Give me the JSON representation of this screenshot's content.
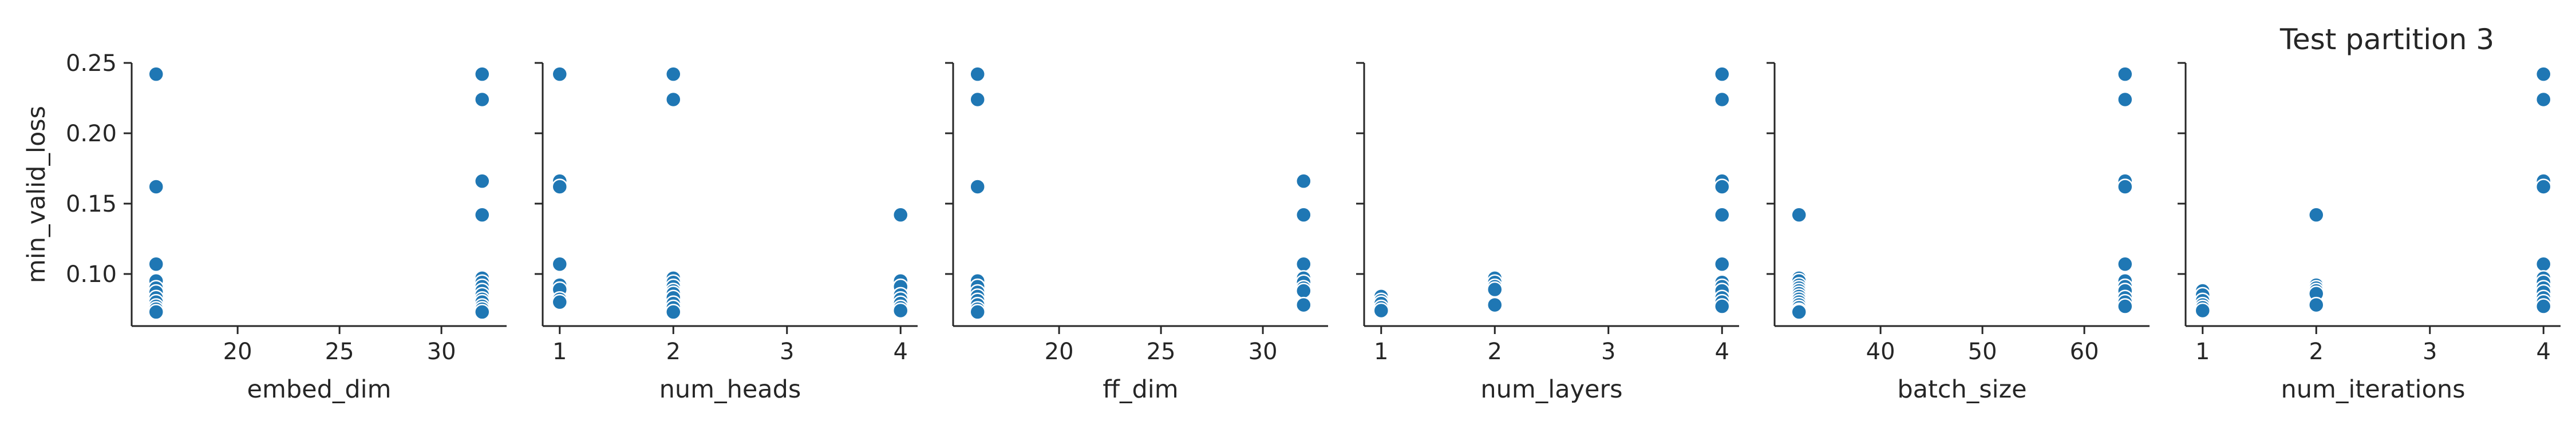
{
  "figure": {
    "title": "Test partition 3",
    "marker_color": "#1f77b4",
    "axis_color": "#262626"
  },
  "chart_data": [
    {
      "type": "scatter",
      "xlabel": "embed_dim",
      "ylabel": "min_valid_loss",
      "xlim": [
        14.8,
        33.2
      ],
      "ylim": [
        0.063,
        0.25
      ],
      "xticks": [
        20,
        25,
        30
      ],
      "yticks": [
        0.1,
        0.15,
        0.2,
        0.25
      ],
      "ytick_labels": [
        "0.10",
        "0.15",
        "0.20",
        "0.25"
      ],
      "series": [
        {
          "name": "min_valid_loss",
          "points": [
            [
              16,
              0.242
            ],
            [
              16,
              0.162
            ],
            [
              16,
              0.107
            ],
            [
              16,
              0.095
            ],
            [
              16,
              0.09
            ],
            [
              16,
              0.087
            ],
            [
              16,
              0.083
            ],
            [
              16,
              0.08
            ],
            [
              16,
              0.077
            ],
            [
              16,
              0.075
            ],
            [
              16,
              0.073
            ],
            [
              32,
              0.242
            ],
            [
              32,
              0.224
            ],
            [
              32,
              0.166
            ],
            [
              32,
              0.142
            ],
            [
              32,
              0.097
            ],
            [
              32,
              0.094
            ],
            [
              32,
              0.091
            ],
            [
              32,
              0.088
            ],
            [
              32,
              0.085
            ],
            [
              32,
              0.082
            ],
            [
              32,
              0.08
            ],
            [
              32,
              0.077
            ],
            [
              32,
              0.075
            ],
            [
              32,
              0.073
            ]
          ]
        }
      ]
    },
    {
      "type": "scatter",
      "xlabel": "num_heads",
      "ylabel": "",
      "xlim": [
        0.85,
        4.15
      ],
      "ylim": [
        0.063,
        0.25
      ],
      "xticks": [
        1,
        2,
        3,
        4
      ],
      "yticks": [
        0.1,
        0.15,
        0.2,
        0.25
      ],
      "ytick_labels": [],
      "series": [
        {
          "name": "min_valid_loss",
          "points": [
            [
              1,
              0.242
            ],
            [
              1,
              0.166
            ],
            [
              1,
              0.162
            ],
            [
              1,
              0.107
            ],
            [
              1,
              0.092
            ],
            [
              1,
              0.089
            ],
            [
              1,
              0.082
            ],
            [
              1,
              0.08
            ],
            [
              2,
              0.242
            ],
            [
              2,
              0.224
            ],
            [
              2,
              0.097
            ],
            [
              2,
              0.094
            ],
            [
              2,
              0.091
            ],
            [
              2,
              0.088
            ],
            [
              2,
              0.086
            ],
            [
              2,
              0.083
            ],
            [
              2,
              0.079
            ],
            [
              2,
              0.076
            ],
            [
              2,
              0.073
            ],
            [
              4,
              0.142
            ],
            [
              4,
              0.095
            ],
            [
              4,
              0.091
            ],
            [
              4,
              0.085
            ],
            [
              4,
              0.082
            ],
            [
              4,
              0.079
            ],
            [
              4,
              0.076
            ],
            [
              4,
              0.074
            ]
          ]
        }
      ]
    },
    {
      "type": "scatter",
      "xlabel": "ff_dim",
      "ylabel": "",
      "xlim": [
        14.8,
        33.2
      ],
      "ylim": [
        0.063,
        0.25
      ],
      "xticks": [
        20,
        25,
        30
      ],
      "yticks": [
        0.1,
        0.15,
        0.2,
        0.25
      ],
      "ytick_labels": [],
      "series": [
        {
          "name": "min_valid_loss",
          "points": [
            [
              16,
              0.242
            ],
            [
              16,
              0.224
            ],
            [
              16,
              0.162
            ],
            [
              16,
              0.095
            ],
            [
              16,
              0.091
            ],
            [
              16,
              0.087
            ],
            [
              16,
              0.084
            ],
            [
              16,
              0.081
            ],
            [
              16,
              0.078
            ],
            [
              16,
              0.075
            ],
            [
              16,
              0.073
            ],
            [
              32,
              0.166
            ],
            [
              32,
              0.142
            ],
            [
              32,
              0.107
            ],
            [
              32,
              0.097
            ],
            [
              32,
              0.094
            ],
            [
              32,
              0.09
            ],
            [
              32,
              0.088
            ],
            [
              32,
              0.078
            ]
          ]
        }
      ]
    },
    {
      "type": "scatter",
      "xlabel": "num_layers",
      "ylabel": "",
      "xlim": [
        0.85,
        4.15
      ],
      "ylim": [
        0.063,
        0.25
      ],
      "xticks": [
        1,
        2,
        3,
        4
      ],
      "yticks": [
        0.1,
        0.15,
        0.2,
        0.25
      ],
      "ytick_labels": [],
      "series": [
        {
          "name": "min_valid_loss",
          "points": [
            [
              1,
              0.084
            ],
            [
              1,
              0.081
            ],
            [
              1,
              0.079
            ],
            [
              1,
              0.076
            ],
            [
              1,
              0.074
            ],
            [
              2,
              0.097
            ],
            [
              2,
              0.094
            ],
            [
              2,
              0.091
            ],
            [
              2,
              0.089
            ],
            [
              2,
              0.078
            ],
            [
              4,
              0.242
            ],
            [
              4,
              0.224
            ],
            [
              4,
              0.166
            ],
            [
              4,
              0.162
            ],
            [
              4,
              0.142
            ],
            [
              4,
              0.107
            ],
            [
              4,
              0.094
            ],
            [
              4,
              0.091
            ],
            [
              4,
              0.088
            ],
            [
              4,
              0.083
            ],
            [
              4,
              0.08
            ],
            [
              4,
              0.077
            ]
          ]
        }
      ]
    },
    {
      "type": "scatter",
      "xlabel": "batch_size",
      "ylabel": "",
      "xlim": [
        29.6,
        66.4
      ],
      "ylim": [
        0.063,
        0.25
      ],
      "xticks": [
        40,
        50,
        60
      ],
      "yticks": [
        0.1,
        0.15,
        0.2,
        0.25
      ],
      "ytick_labels": [],
      "series": [
        {
          "name": "min_valid_loss",
          "points": [
            [
              32,
              0.142
            ],
            [
              32,
              0.097
            ],
            [
              32,
              0.095
            ],
            [
              32,
              0.092
            ],
            [
              32,
              0.09
            ],
            [
              32,
              0.088
            ],
            [
              32,
              0.086
            ],
            [
              32,
              0.084
            ],
            [
              32,
              0.082
            ],
            [
              32,
              0.08
            ],
            [
              32,
              0.078
            ],
            [
              32,
              0.076
            ],
            [
              32,
              0.074
            ],
            [
              32,
              0.073
            ],
            [
              64,
              0.242
            ],
            [
              64,
              0.224
            ],
            [
              64,
              0.166
            ],
            [
              64,
              0.162
            ],
            [
              64,
              0.107
            ],
            [
              64,
              0.095
            ],
            [
              64,
              0.091
            ],
            [
              64,
              0.088
            ],
            [
              64,
              0.083
            ],
            [
              64,
              0.08
            ],
            [
              64,
              0.077
            ]
          ]
        }
      ]
    },
    {
      "type": "scatter",
      "xlabel": "num_iterations",
      "ylabel": "",
      "xlim": [
        0.85,
        4.15
      ],
      "ylim": [
        0.063,
        0.25
      ],
      "xticks": [
        1,
        2,
        3,
        4
      ],
      "yticks": [
        0.1,
        0.15,
        0.2,
        0.25
      ],
      "ytick_labels": [],
      "series": [
        {
          "name": "min_valid_loss",
          "points": [
            [
              1,
              0.088
            ],
            [
              1,
              0.085
            ],
            [
              1,
              0.081
            ],
            [
              1,
              0.078
            ],
            [
              1,
              0.076
            ],
            [
              1,
              0.074
            ],
            [
              2,
              0.142
            ],
            [
              2,
              0.092
            ],
            [
              2,
              0.09
            ],
            [
              2,
              0.088
            ],
            [
              2,
              0.086
            ],
            [
              2,
              0.078
            ],
            [
              4,
              0.242
            ],
            [
              4,
              0.224
            ],
            [
              4,
              0.166
            ],
            [
              4,
              0.162
            ],
            [
              4,
              0.107
            ],
            [
              4,
              0.097
            ],
            [
              4,
              0.094
            ],
            [
              4,
              0.09
            ],
            [
              4,
              0.087
            ],
            [
              4,
              0.083
            ],
            [
              4,
              0.08
            ],
            [
              4,
              0.077
            ]
          ]
        }
      ]
    }
  ]
}
